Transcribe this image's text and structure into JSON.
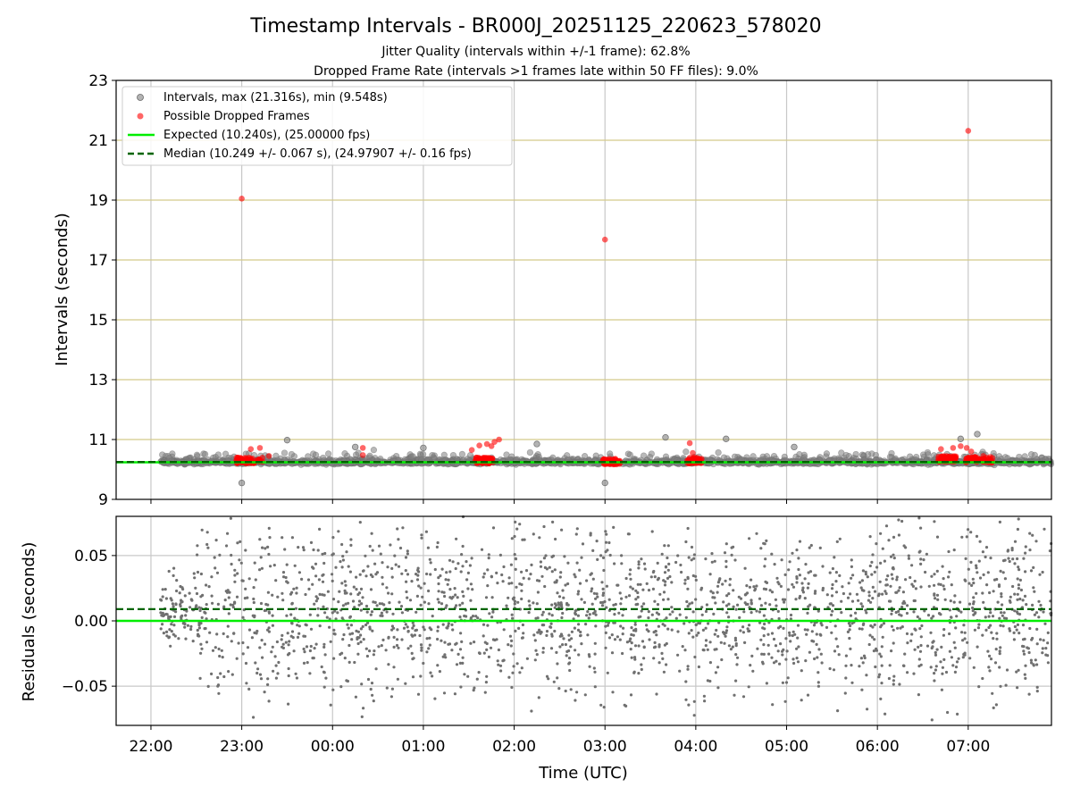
{
  "chart_data": [
    {
      "type": "scatter",
      "title": "Timestamp Intervals - BR000J_20251125_220623_578020",
      "subtitle_lines": [
        "Jitter Quality (intervals within +/-1 frame): 62.8%",
        "Dropped Frame Rate (intervals >1 frames late within 50 FF files): 9.0%"
      ],
      "ylabel": "Intervals (seconds)",
      "ylim": [
        9,
        23
      ],
      "yticks": [
        9,
        11,
        13,
        15,
        17,
        19,
        21,
        23
      ],
      "ytick_labels": [
        "9",
        "11",
        "13",
        "15",
        "17",
        "19",
        "21",
        "23"
      ],
      "grid": true,
      "legend_position": "top-left",
      "series": [
        {
          "name": "Intervals, max (21.316s), min (9.548s)",
          "color": "#808080",
          "outliers": [
            {
              "x": "23:00",
              "y": 9.548
            },
            {
              "x": "23:30",
              "y": 10.98
            },
            {
              "x": "03:00",
              "y": 9.55
            },
            {
              "x": "03:40",
              "y": 11.07
            },
            {
              "x": "04:20",
              "y": 11.02
            },
            {
              "x": "06:55",
              "y": 11.02
            },
            {
              "x": "07:06",
              "y": 11.18
            },
            {
              "x": "00:15",
              "y": 10.75
            },
            {
              "x": "02:15",
              "y": 10.85
            },
            {
              "x": "05:05",
              "y": 10.75
            },
            {
              "x": "01:00",
              "y": 10.72
            }
          ]
        },
        {
          "name": "Possible Dropped Frames",
          "color": "#ff0000",
          "points": [
            {
              "x": "23:00",
              "y": 19.05
            },
            {
              "x": "03:00",
              "y": 17.68
            },
            {
              "x": "07:00",
              "y": 21.316
            },
            {
              "x": "23:06",
              "y": 10.68
            },
            {
              "x": "23:12",
              "y": 10.72
            },
            {
              "x": "23:18",
              "y": 10.45
            },
            {
              "x": "00:20",
              "y": 10.72
            },
            {
              "x": "00:20",
              "y": 10.48
            },
            {
              "x": "01:32",
              "y": 10.65
            },
            {
              "x": "01:37",
              "y": 10.8
            },
            {
              "x": "01:42",
              "y": 10.85
            },
            {
              "x": "01:45",
              "y": 10.78
            },
            {
              "x": "01:47",
              "y": 10.92
            },
            {
              "x": "01:50",
              "y": 11.0
            },
            {
              "x": "03:56",
              "y": 10.88
            },
            {
              "x": "03:58",
              "y": 10.55
            },
            {
              "x": "06:42",
              "y": 10.68
            },
            {
              "x": "06:50",
              "y": 10.72
            },
            {
              "x": "06:55",
              "y": 10.78
            },
            {
              "x": "06:59",
              "y": 10.72
            },
            {
              "x": "07:02",
              "y": 10.6
            },
            {
              "x": "07:10",
              "y": 10.45
            }
          ],
          "clusters": [
            {
              "from": "22:56",
              "to": "23:14",
              "y": 10.3
            },
            {
              "from": "01:34",
              "to": "01:46",
              "y": 10.3
            },
            {
              "from": "02:58",
              "to": "03:10",
              "y": 10.26
            },
            {
              "from": "03:54",
              "to": "04:04",
              "y": 10.3
            },
            {
              "from": "06:40",
              "to": "06:52",
              "y": 10.35
            },
            {
              "from": "06:58",
              "to": "07:16",
              "y": 10.32
            }
          ]
        },
        {
          "name": "Expected (10.240s), (25.00000 fps)",
          "color": "#00ee00",
          "line": 10.24,
          "style": "solid"
        },
        {
          "name": "Median (10.249 +/- 0.067 s), (24.97907 +/- 0.16 fps)",
          "color": "#006400",
          "line": 10.249,
          "style": "dashed"
        }
      ]
    },
    {
      "type": "scatter",
      "xlabel": "Time (UTC)",
      "ylabel": "Residuals (seconds)",
      "ylim": [
        -0.08,
        0.08
      ],
      "yticks": [
        -0.05,
        0.0,
        0.05
      ],
      "ytick_labels": [
        "−0.05",
        "0.00",
        "0.05"
      ],
      "xlim": [
        "21:37",
        "07:55"
      ],
      "xticks": [
        "22:00",
        "23:00",
        "00:00",
        "01:00",
        "02:00",
        "03:00",
        "04:00",
        "05:00",
        "06:00",
        "07:00"
      ],
      "xtick_labels": [
        "22:00",
        "23:00",
        "00:00",
        "01:00",
        "02:00",
        "03:00",
        "04:00",
        "05:00",
        "06:00",
        "07:00"
      ],
      "grid": true,
      "series": [
        {
          "name": "Residuals",
          "color": "#707070",
          "start": "22:06",
          "end": "07:55"
        },
        {
          "name": "Expected",
          "color": "#00ee00",
          "line": 0.0,
          "style": "solid"
        },
        {
          "name": "Median",
          "color": "#006400",
          "line": 0.009,
          "style": "dashed"
        }
      ]
    }
  ]
}
